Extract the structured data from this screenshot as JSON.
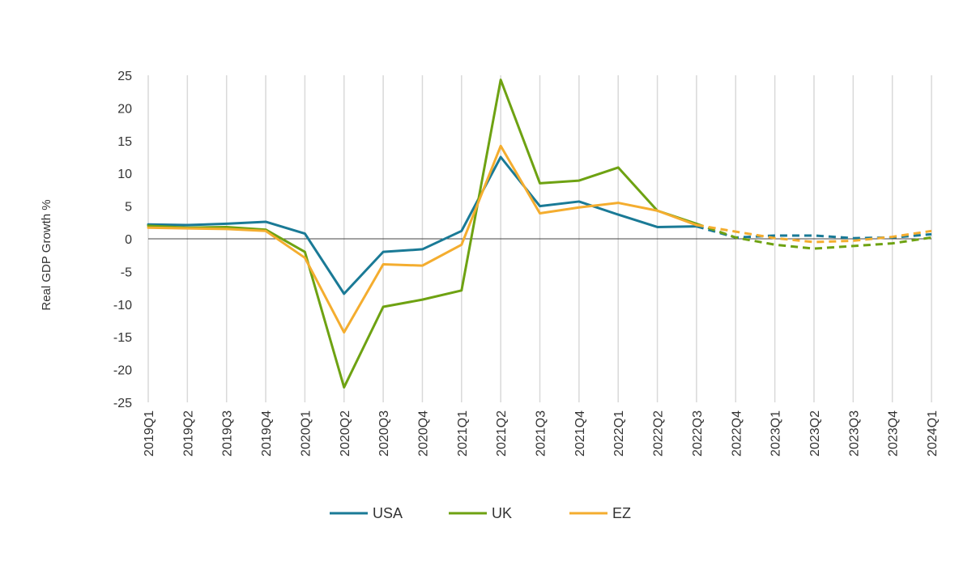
{
  "chart_data": {
    "type": "line",
    "title": "",
    "xlabel": "",
    "ylabel": "Real GDP Growth %",
    "ylim": [
      -25,
      25
    ],
    "yticks": [
      25,
      20,
      15,
      10,
      5,
      0,
      -5,
      -10,
      -15,
      -20,
      -25
    ],
    "grid": "vertical",
    "legend_position": "bottom",
    "forecast_start": "2022Q3",
    "x": [
      "2019Q1",
      "2019Q2",
      "2019Q3",
      "2019Q4",
      "2020Q1",
      "2020Q2",
      "2020Q3",
      "2020Q4",
      "2021Q1",
      "2021Q2",
      "2021Q3",
      "2021Q4",
      "2022Q1",
      "2022Q2",
      "2022Q3",
      "2022Q4",
      "2023Q1",
      "2023Q2",
      "2023Q3",
      "2023Q4",
      "2024Q1"
    ],
    "series": [
      {
        "name": "USA",
        "color": "#1a7a96",
        "values": [
          2.2,
          2.1,
          2.3,
          2.6,
          0.8,
          -8.4,
          -2.0,
          -1.6,
          1.2,
          12.5,
          5.0,
          5.7,
          3.7,
          1.8,
          1.9,
          0.2,
          0.5,
          0.5,
          0.1,
          0.2,
          0.7
        ]
      },
      {
        "name": "UK",
        "color": "#6ea212",
        "values": [
          2.0,
          1.7,
          1.8,
          1.4,
          -2.0,
          -22.7,
          -10.4,
          -9.3,
          -7.9,
          24.3,
          8.5,
          8.9,
          10.9,
          4.3,
          2.3,
          0.2,
          -0.9,
          -1.5,
          -1.1,
          -0.7,
          0.2
        ]
      },
      {
        "name": "EZ",
        "color": "#f4ad2f",
        "values": [
          1.7,
          1.6,
          1.5,
          1.2,
          -2.9,
          -14.3,
          -3.9,
          -4.1,
          -0.9,
          14.2,
          3.9,
          4.8,
          5.5,
          4.3,
          2.1,
          1.1,
          0.1,
          -0.5,
          -0.3,
          0.3,
          1.2
        ]
      }
    ]
  }
}
